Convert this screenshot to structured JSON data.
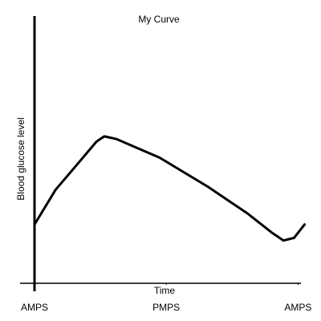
{
  "chart_data": {
    "type": "line",
    "title": "My Curve",
    "x_label": "Time",
    "y_label": "Blood glucose level",
    "x": [
      0,
      0.16,
      0.35,
      0.47,
      0.53,
      0.62,
      0.95,
      1.32,
      1.62,
      1.8,
      1.89,
      1.97,
      2.05
    ],
    "y": [
      22,
      35,
      46,
      53,
      55,
      54,
      47,
      36,
      26,
      19,
      16,
      17,
      22
    ],
    "color": "#000000",
    "xlim": [
      0,
      2.01
    ],
    "ylim": [
      0,
      100
    ],
    "xticks": [
      {
        "value": 0,
        "label": "AMPS"
      },
      {
        "value": 1,
        "label": "PMPS"
      },
      {
        "value": 2,
        "label": "AMPS"
      }
    ]
  }
}
